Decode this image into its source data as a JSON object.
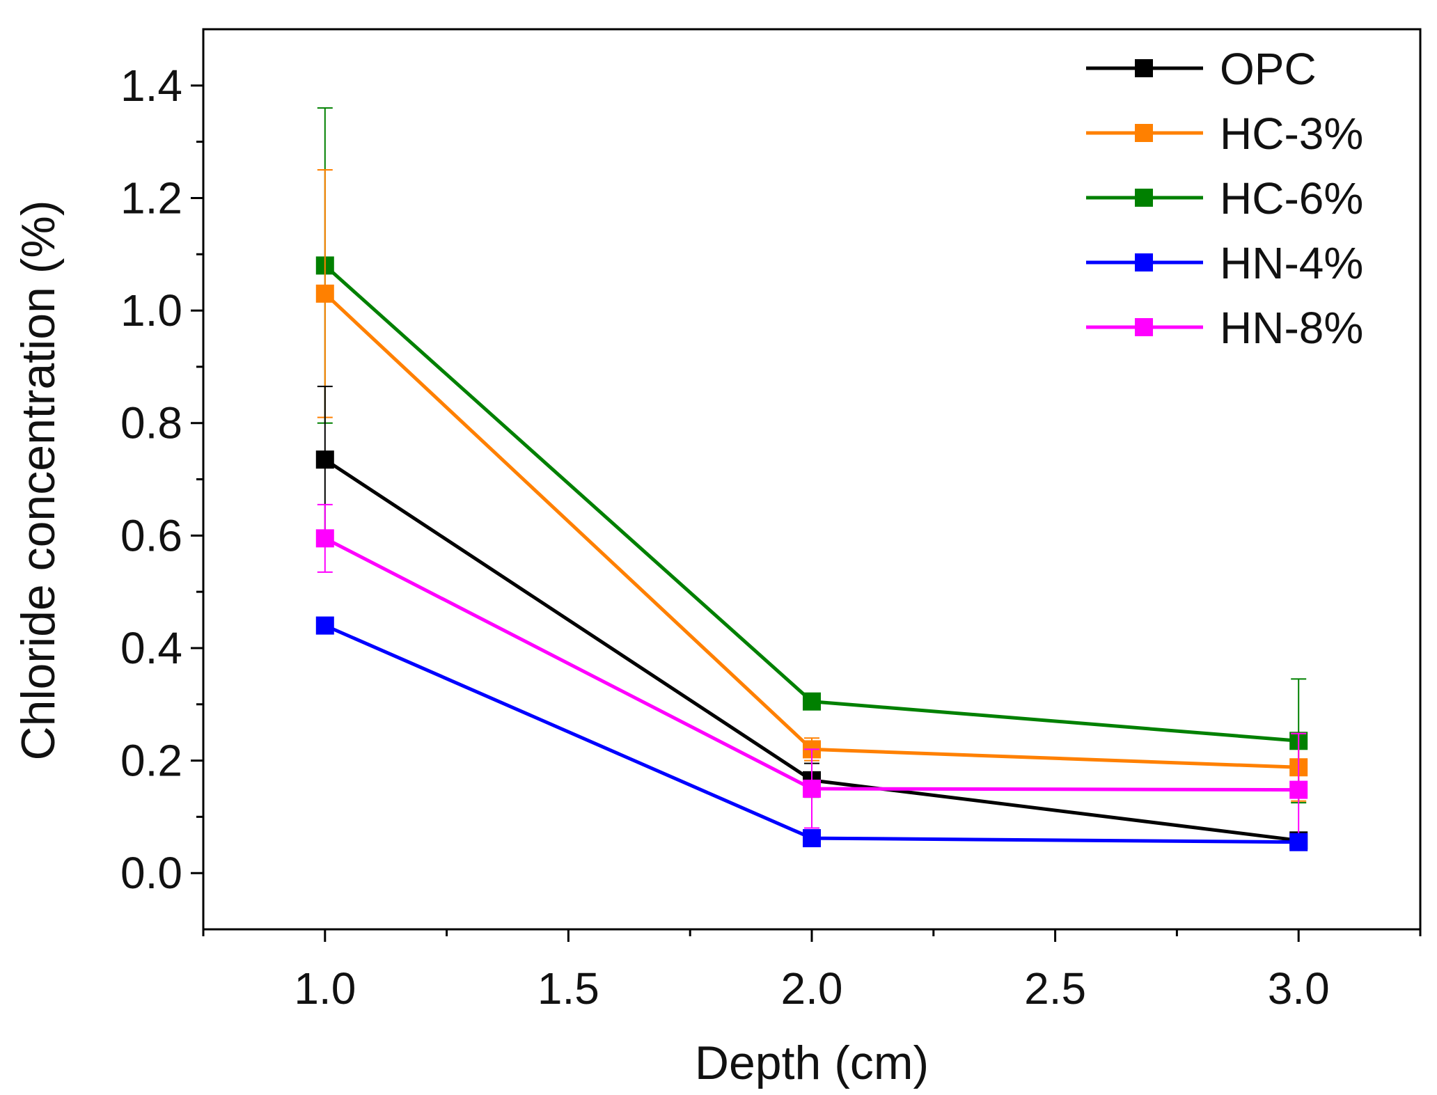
{
  "chart_data": {
    "type": "line",
    "title": "",
    "xlabel": "Depth (cm)",
    "ylabel": "Chloride concentration (%)",
    "xlim": [
      0.75,
      3.25
    ],
    "ylim": [
      -0.1,
      1.5
    ],
    "xticks": [
      1.0,
      1.5,
      2.0,
      2.5,
      3.0
    ],
    "xtick_labels": [
      "1.0",
      "1.5",
      "2.0",
      "2.5",
      "3.0"
    ],
    "yticks": [
      0.0,
      0.2,
      0.4,
      0.6,
      0.8,
      1.0,
      1.2,
      1.4
    ],
    "ytick_labels": [
      "0.0",
      "0.2",
      "0.4",
      "0.6",
      "0.8",
      "1.0",
      "1.2",
      "1.4"
    ],
    "legend_position": "top-right",
    "x": [
      1.0,
      2.0,
      3.0
    ],
    "series": [
      {
        "name": "OPC",
        "color": "#000000",
        "values": [
          0.735,
          0.165,
          0.058
        ],
        "errors": [
          0.13,
          0.03,
          0.01
        ]
      },
      {
        "name": "HC-3%",
        "color": "#ff8000",
        "values": [
          1.03,
          0.22,
          0.188
        ],
        "errors": [
          0.22,
          0.02,
          0.06
        ]
      },
      {
        "name": "HC-6%",
        "color": "#008000",
        "values": [
          1.08,
          0.305,
          0.235
        ],
        "errors": [
          0.28,
          0.01,
          0.11
        ]
      },
      {
        "name": "HN-4%",
        "color": "#0000ff",
        "values": [
          0.44,
          0.062,
          0.055
        ],
        "errors": [
          0.01,
          0.005,
          0.005
        ]
      },
      {
        "name": "HN-8%",
        "color": "#ff00ff",
        "values": [
          0.595,
          0.15,
          0.148
        ],
        "errors": [
          0.06,
          0.07,
          0.1
        ]
      }
    ]
  }
}
